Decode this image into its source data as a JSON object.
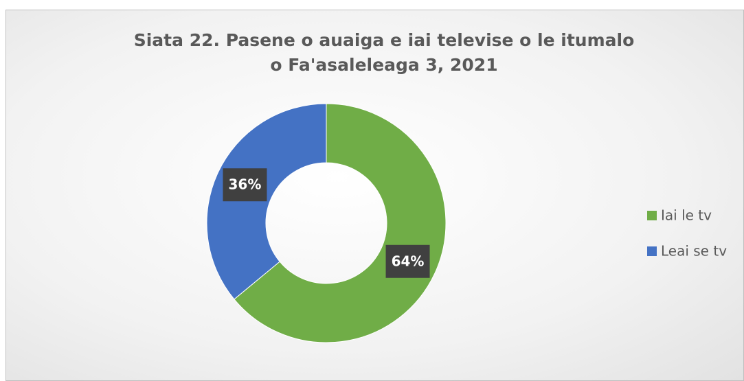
{
  "chart_data": {
    "type": "donut",
    "title": "Siata 22. Pasene o auaiga e iai televise o le itumalo o Fa'asaleleaga 3, 2021",
    "categories": [
      "Iai le tv",
      "Leai se tv"
    ],
    "values": [
      64,
      36
    ],
    "value_labels": [
      "64%",
      "36%"
    ],
    "colors": [
      "#70ad47",
      "#4472c4"
    ],
    "legend": "right"
  }
}
